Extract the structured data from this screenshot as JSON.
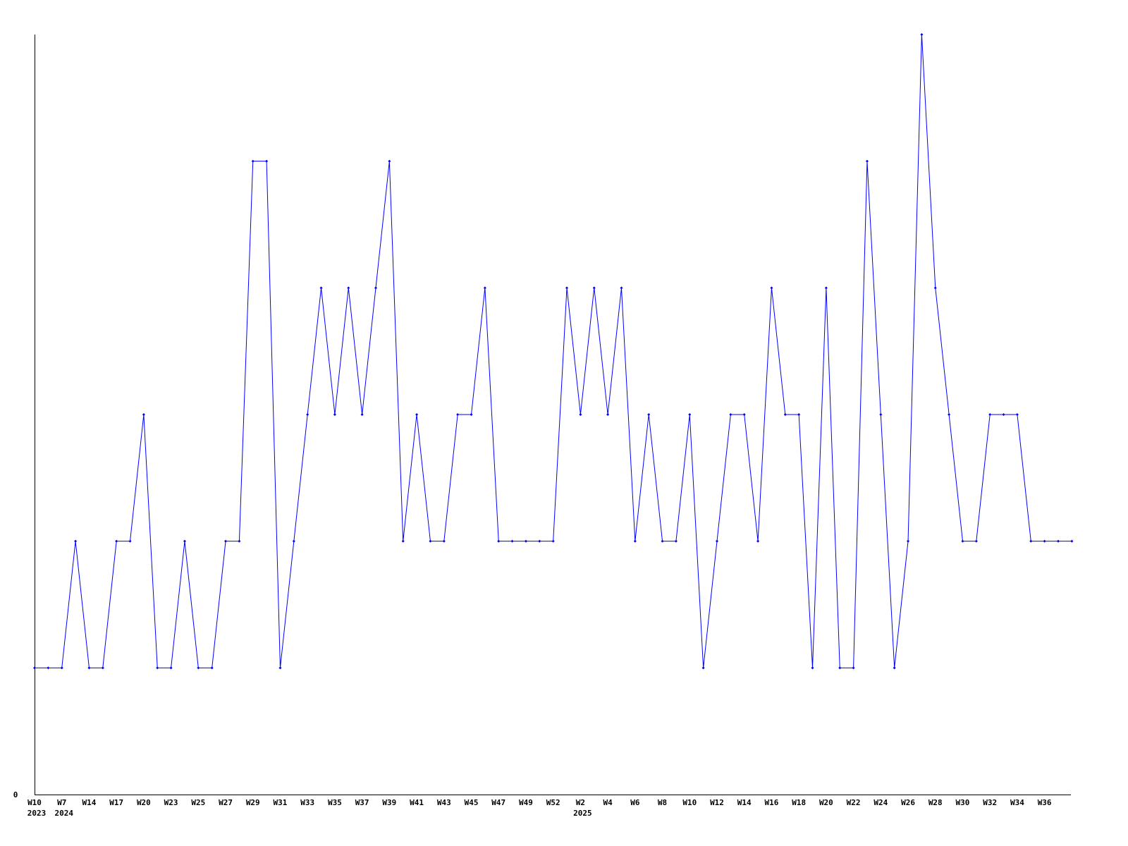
{
  "chart_data": {
    "type": "line",
    "title": "",
    "xlabel": "",
    "ylabel": "",
    "ylim": [
      0,
      6
    ],
    "y_tick_labels": [
      "0"
    ],
    "grid": false,
    "line_color": "#0000ff",
    "axis_color": "#000000",
    "categories": [
      "W10",
      "",
      "W7",
      "",
      "W14",
      "",
      "W17",
      "",
      "W20",
      "",
      "W23",
      "",
      "W25",
      "",
      "W27",
      "",
      "W29",
      "",
      "W31",
      "",
      "W33",
      "",
      "W35",
      "",
      "W37",
      "",
      "W39",
      "",
      "W41",
      "",
      "W43",
      "",
      "W45",
      "",
      "W47",
      "",
      "W49",
      "",
      "W52",
      "",
      "W2",
      "",
      "W4",
      "",
      "W6",
      "",
      "W8",
      "",
      "W10",
      "",
      "W12",
      "",
      "W14",
      "",
      "W16",
      "",
      "W18",
      "",
      "W20",
      "",
      "W22",
      "",
      "W24",
      "",
      "W26",
      "",
      "W28",
      "",
      "W30",
      "",
      "W32",
      "",
      "W34",
      "",
      "W36",
      "",
      ""
    ],
    "year_labels": {
      "0": "2023",
      "2": "2024",
      "40": "2025"
    },
    "values": [
      1,
      1,
      1,
      2,
      1,
      1,
      2,
      2,
      3,
      1,
      1,
      2,
      1,
      1,
      2,
      2,
      5,
      5,
      1,
      2,
      3,
      4,
      3,
      4,
      3,
      4,
      5,
      2,
      3,
      2,
      2,
      3,
      3,
      4,
      2,
      2,
      2,
      2,
      2,
      4,
      3,
      4,
      3,
      4,
      2,
      3,
      2,
      2,
      3,
      1,
      2,
      3,
      3,
      2,
      4,
      3,
      3,
      1,
      4,
      1,
      1,
      5,
      3,
      1,
      2,
      6,
      4,
      3,
      2,
      2,
      3,
      3,
      3,
      2,
      2,
      2,
      2
    ]
  }
}
